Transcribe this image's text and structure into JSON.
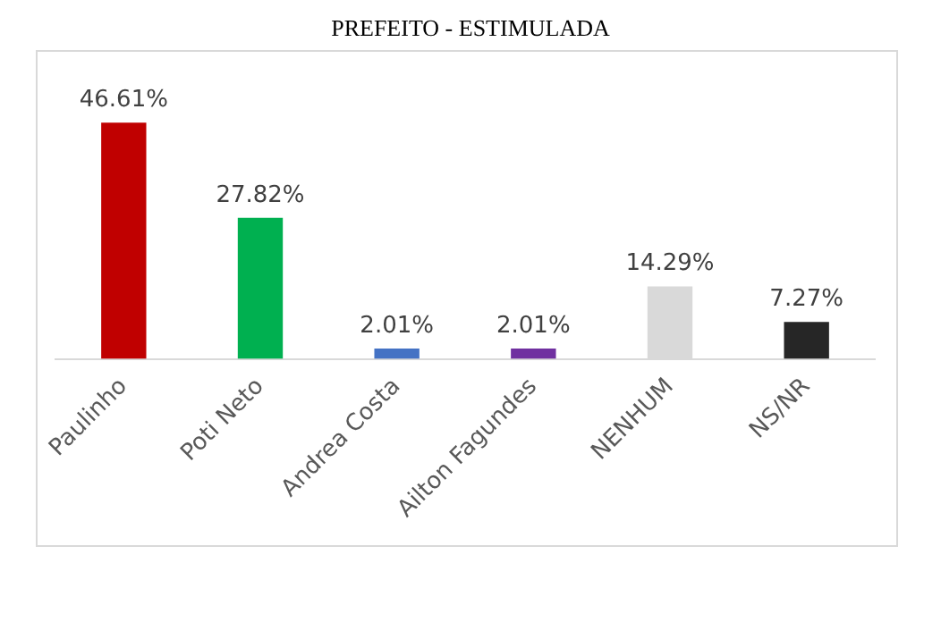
{
  "chart_data": {
    "type": "bar",
    "title": "PREFEITO - ESTIMULADA",
    "categories": [
      "Paulinho",
      "Poti Neto",
      "Andrea Costa",
      "Ailton Fagundes",
      "NENHUM",
      "NS/NR"
    ],
    "values": [
      46.61,
      27.82,
      2.01,
      2.01,
      14.29,
      7.27
    ],
    "colors": [
      "#c00000",
      "#00b050",
      "#4472c4",
      "#7030a0",
      "#d9d9d9",
      "#262626"
    ],
    "value_labels": [
      "46.61%",
      "27.82%",
      "2.01%",
      "2.01%",
      "14.29%",
      "7.27%"
    ],
    "tick_labels": "x",
    "grid": false,
    "legend": false
  }
}
